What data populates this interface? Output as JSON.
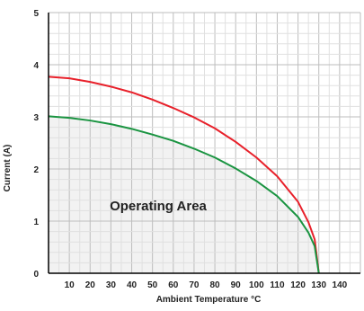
{
  "colors": {
    "background": "#ffffff",
    "grid_minor": "#e0e0e0",
    "grid_major": "#bdbdbd",
    "axis": "#000000",
    "area_fill": "#f0f0f0",
    "red_curve": "#e8202a",
    "green_curve": "#1a9441"
  },
  "chart_data": {
    "type": "line",
    "xlabel": "Ambient Temperature °C",
    "ylabel": "Current (A)",
    "xlim": [
      0,
      150
    ],
    "ylim": [
      0,
      5
    ],
    "x_ticks": [
      10,
      20,
      30,
      40,
      50,
      60,
      70,
      80,
      90,
      100,
      110,
      120,
      130,
      140
    ],
    "y_ticks": [
      0,
      1,
      2,
      3,
      4,
      5
    ],
    "grid": true,
    "annotation": "Operating Area",
    "series": [
      {
        "color": "#e8202a",
        "x": [
          0,
          10,
          20,
          30,
          40,
          50,
          60,
          70,
          80,
          90,
          100,
          110,
          120,
          125,
          128,
          130
        ],
        "y": [
          3.77,
          3.74,
          3.67,
          3.58,
          3.47,
          3.33,
          3.17,
          2.99,
          2.78,
          2.52,
          2.22,
          1.86,
          1.37,
          0.98,
          0.65,
          0.0
        ]
      },
      {
        "color": "#1a9441",
        "x": [
          0,
          10,
          20,
          30,
          40,
          50,
          60,
          70,
          80,
          90,
          100,
          110,
          120,
          125,
          128,
          130
        ],
        "y": [
          3.01,
          2.98,
          2.93,
          2.86,
          2.77,
          2.66,
          2.54,
          2.39,
          2.22,
          2.01,
          1.77,
          1.48,
          1.08,
          0.78,
          0.52,
          0.0
        ]
      }
    ]
  }
}
